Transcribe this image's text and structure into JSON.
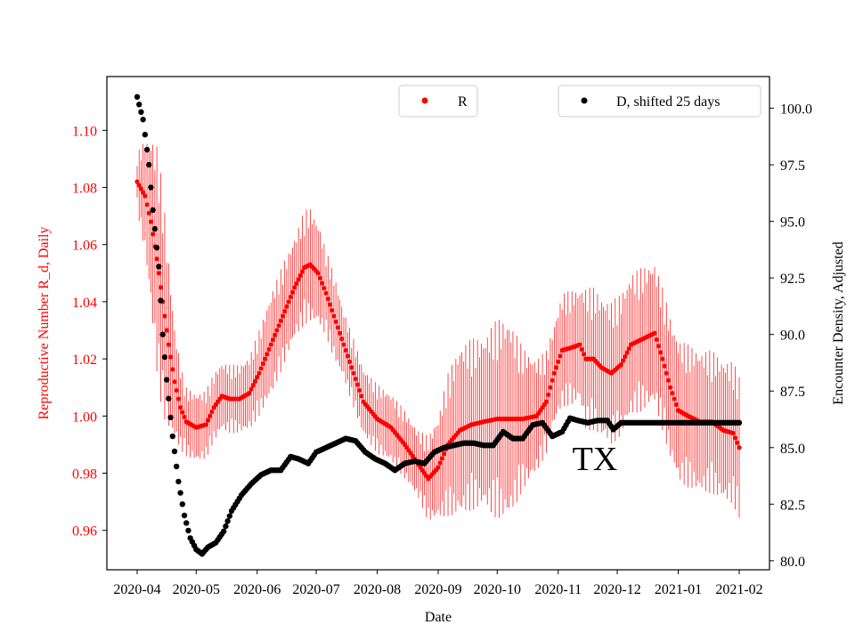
{
  "chart_data": {
    "type": "scatter",
    "xlabel": "Date",
    "ylabel_left": "Reproductive Number R_d, Daily",
    "ylabel_right": "Encounter Density, Adjusted",
    "x_range": [
      "2020-04-01",
      "2021-02-01"
    ],
    "ylim_left": [
      0.9462,
      1.1188
    ],
    "ylim_right": [
      79.6,
      101.4
    ],
    "x_ticks": [
      "2020-04",
      "2020-05",
      "2020-06",
      "2020-07",
      "2020-08",
      "2020-09",
      "2020-10",
      "2020-11",
      "2020-12",
      "2021-01",
      "2021-02"
    ],
    "y_ticks_left": [
      "0.96",
      "0.98",
      "1.00",
      "1.02",
      "1.04",
      "1.06",
      "1.08",
      "1.10"
    ],
    "y_ticks_right": [
      "80.0",
      "82.5",
      "85.0",
      "87.5",
      "90.0",
      "92.5",
      "95.0",
      "97.5",
      "100.0"
    ],
    "annotation": "TX",
    "colors": {
      "R": "#ff0000",
      "D": "#000000",
      "left_axis": "#ff0000",
      "right_axis": "#000000"
    },
    "legend": {
      "R": {
        "label": "R",
        "position": "top-center"
      },
      "D": {
        "label": "D, shifted 25 days",
        "position": "top-right"
      }
    },
    "series": [
      {
        "name": "R",
        "axis": "left",
        "marker": "dot",
        "error_bars": true,
        "points": [
          [
            "2020-04-01",
            1.082,
            0.01
          ],
          [
            "2020-04-05",
            1.077,
            0.02
          ],
          [
            "2020-04-08",
            1.068,
            0.03
          ],
          [
            "2020-04-11",
            1.055,
            0.04
          ],
          [
            "2020-04-14",
            1.04,
            0.04
          ],
          [
            "2020-04-17",
            1.025,
            0.03
          ],
          [
            "2020-04-20",
            1.012,
            0.02
          ],
          [
            "2020-04-23",
            1.003,
            0.015
          ],
          [
            "2020-04-26",
            0.998,
            0.012
          ],
          [
            "2020-05-01",
            0.996,
            0.012
          ],
          [
            "2020-05-06",
            0.997,
            0.012
          ],
          [
            "2020-05-10",
            1.003,
            0.012
          ],
          [
            "2020-05-14",
            1.007,
            0.012
          ],
          [
            "2020-05-18",
            1.006,
            0.012
          ],
          [
            "2020-05-23",
            1.006,
            0.012
          ],
          [
            "2020-05-28",
            1.008,
            0.013
          ],
          [
            "2020-06-02",
            1.015,
            0.015
          ],
          [
            "2020-06-08",
            1.025,
            0.018
          ],
          [
            "2020-06-14",
            1.035,
            0.018
          ],
          [
            "2020-06-20",
            1.045,
            0.018
          ],
          [
            "2020-06-25",
            1.052,
            0.02
          ],
          [
            "2020-06-28",
            1.053,
            0.02
          ],
          [
            "2020-07-02",
            1.05,
            0.018
          ],
          [
            "2020-07-06",
            1.043,
            0.015
          ],
          [
            "2020-07-10",
            1.035,
            0.015
          ],
          [
            "2020-07-15",
            1.025,
            0.012
          ],
          [
            "2020-07-20",
            1.015,
            0.012
          ],
          [
            "2020-07-25",
            1.005,
            0.012
          ],
          [
            "2020-08-01",
            0.999,
            0.012
          ],
          [
            "2020-08-08",
            0.996,
            0.012
          ],
          [
            "2020-08-15",
            0.99,
            0.012
          ],
          [
            "2020-08-22",
            0.983,
            0.012
          ],
          [
            "2020-08-27",
            0.978,
            0.015
          ],
          [
            "2020-09-01",
            0.982,
            0.018
          ],
          [
            "2020-09-06",
            0.99,
            0.025
          ],
          [
            "2020-09-12",
            0.995,
            0.03
          ],
          [
            "2020-09-18",
            0.997,
            0.03
          ],
          [
            "2020-09-24",
            0.998,
            0.03
          ],
          [
            "2020-10-01",
            0.999,
            0.035
          ],
          [
            "2020-10-07",
            0.999,
            0.035
          ],
          [
            "2020-10-14",
            0.999,
            0.025
          ],
          [
            "2020-10-21",
            1.0,
            0.02
          ],
          [
            "2020-10-26",
            1.005,
            0.018
          ],
          [
            "2020-10-30",
            1.015,
            0.018
          ],
          [
            "2020-11-03",
            1.023,
            0.02
          ],
          [
            "2020-11-08",
            1.024,
            0.02
          ],
          [
            "2020-11-12",
            1.025,
            0.02
          ],
          [
            "2020-11-15",
            1.02,
            0.025
          ],
          [
            "2020-11-19",
            1.02,
            0.025
          ],
          [
            "2020-11-23",
            1.017,
            0.025
          ],
          [
            "2020-11-28",
            1.015,
            0.025
          ],
          [
            "2020-12-03",
            1.018,
            0.025
          ],
          [
            "2020-12-08",
            1.025,
            0.025
          ],
          [
            "2020-12-14",
            1.027,
            0.025
          ],
          [
            "2020-12-20",
            1.029,
            0.025
          ],
          [
            "2020-12-24",
            1.02,
            0.025
          ],
          [
            "2020-12-28",
            1.01,
            0.025
          ],
          [
            "2021-01-01",
            1.002,
            0.025
          ],
          [
            "2021-01-06",
            1.0,
            0.025
          ],
          [
            "2021-01-12",
            0.998,
            0.025
          ],
          [
            "2021-01-18",
            0.998,
            0.025
          ],
          [
            "2021-01-24",
            0.995,
            0.025
          ],
          [
            "2021-01-29",
            0.994,
            0.025
          ],
          [
            "2021-02-01",
            0.989,
            0.025
          ]
        ]
      },
      {
        "name": "D, shifted 25 days",
        "axis": "right",
        "marker": "dot",
        "points": [
          [
            "2020-04-01",
            100.5
          ],
          [
            "2020-04-04",
            99.5
          ],
          [
            "2020-04-07",
            97.5
          ],
          [
            "2020-04-09",
            95.5
          ],
          [
            "2020-04-12",
            93.0
          ],
          [
            "2020-04-14",
            90.0
          ],
          [
            "2020-04-16",
            88.0
          ],
          [
            "2020-04-19",
            85.5
          ],
          [
            "2020-04-22",
            83.5
          ],
          [
            "2020-04-25",
            82.0
          ],
          [
            "2020-04-28",
            81.0
          ],
          [
            "2020-05-01",
            80.5
          ],
          [
            "2020-05-04",
            80.3
          ],
          [
            "2020-05-07",
            80.6
          ],
          [
            "2020-05-11",
            80.8
          ],
          [
            "2020-05-15",
            81.3
          ],
          [
            "2020-05-19",
            82.2
          ],
          [
            "2020-05-24",
            82.9
          ],
          [
            "2020-05-29",
            83.4
          ],
          [
            "2020-06-03",
            83.8
          ],
          [
            "2020-06-08",
            84.0
          ],
          [
            "2020-06-13",
            84.0
          ],
          [
            "2020-06-18",
            84.6
          ],
          [
            "2020-06-22",
            84.5
          ],
          [
            "2020-06-27",
            84.3
          ],
          [
            "2020-07-01",
            84.8
          ],
          [
            "2020-07-06",
            85.0
          ],
          [
            "2020-07-11",
            85.2
          ],
          [
            "2020-07-16",
            85.4
          ],
          [
            "2020-07-21",
            85.3
          ],
          [
            "2020-07-26",
            84.8
          ],
          [
            "2020-07-31",
            84.5
          ],
          [
            "2020-08-05",
            84.3
          ],
          [
            "2020-08-10",
            84.0
          ],
          [
            "2020-08-15",
            84.3
          ],
          [
            "2020-08-20",
            84.4
          ],
          [
            "2020-08-25",
            84.3
          ],
          [
            "2020-08-30",
            84.8
          ],
          [
            "2020-09-04",
            85.0
          ],
          [
            "2020-09-09",
            85.1
          ],
          [
            "2020-09-14",
            85.2
          ],
          [
            "2020-09-19",
            85.2
          ],
          [
            "2020-09-24",
            85.1
          ],
          [
            "2020-09-29",
            85.1
          ],
          [
            "2020-10-04",
            85.7
          ],
          [
            "2020-10-09",
            85.4
          ],
          [
            "2020-10-14",
            85.4
          ],
          [
            "2020-10-19",
            86.0
          ],
          [
            "2020-10-24",
            86.1
          ],
          [
            "2020-10-29",
            85.5
          ],
          [
            "2020-11-03",
            85.7
          ],
          [
            "2020-11-07",
            86.3
          ],
          [
            "2020-11-11",
            86.2
          ],
          [
            "2020-11-16",
            86.1
          ],
          [
            "2020-11-21",
            86.2
          ],
          [
            "2020-11-26",
            86.2
          ],
          [
            "2020-11-29",
            85.8
          ],
          [
            "2020-12-03",
            86.1
          ],
          [
            "2020-12-09",
            86.1
          ],
          [
            "2020-12-16",
            86.1
          ],
          [
            "2020-12-23",
            86.1
          ],
          [
            "2020-12-30",
            86.1
          ],
          [
            "2021-01-06",
            86.1
          ],
          [
            "2021-01-13",
            86.1
          ],
          [
            "2021-01-20",
            86.1
          ],
          [
            "2021-01-27",
            86.1
          ],
          [
            "2021-02-01",
            86.1
          ]
        ]
      }
    ]
  }
}
